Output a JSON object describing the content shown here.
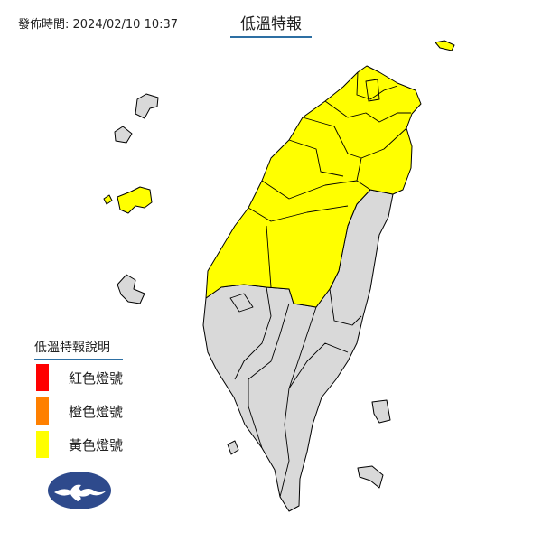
{
  "header": {
    "issued_time": "發佈時間: 2024/02/10 10:37",
    "title": "低溫特報"
  },
  "legend": {
    "title": "低溫特報說明",
    "items": [
      {
        "label": "紅色燈號",
        "color": "#ff0000"
      },
      {
        "label": "橙色燈號",
        "color": "#ff8000"
      },
      {
        "label": "黃色燈號",
        "color": "#ffff00"
      }
    ]
  },
  "map": {
    "warning_color": "#ffff00",
    "no_warning_color": "#d9d9d9",
    "border_color": "#000000",
    "regions_with_warning": "northern and central Taiwan, Kinmen, Matsu",
    "regions_without_warning": "southern and eastern Taiwan, Penghu, outlying islands"
  },
  "logo": {
    "name": "central-weather-administration-logo",
    "color": "#2e4a8c"
  }
}
